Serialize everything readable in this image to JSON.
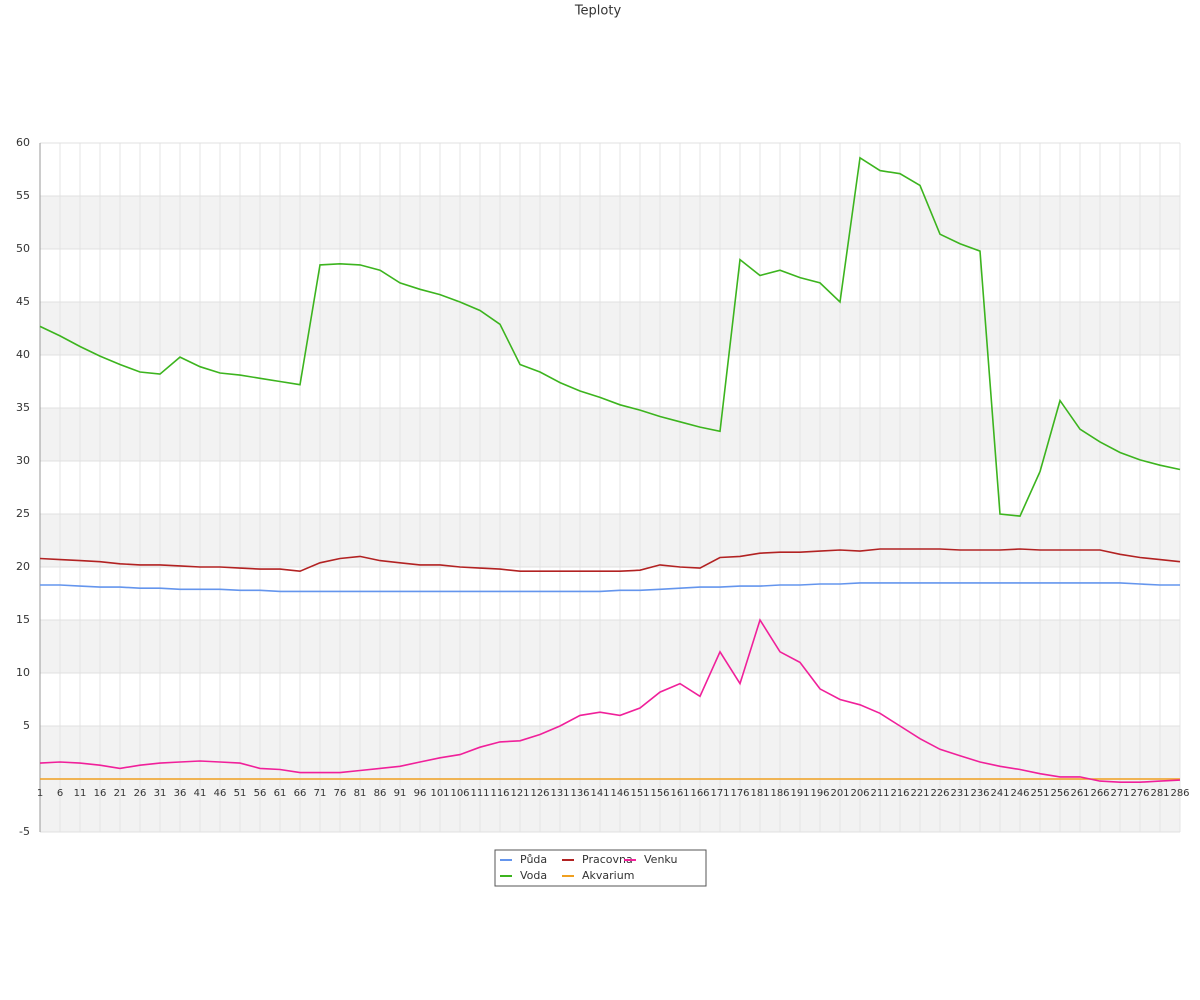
{
  "chart_data": {
    "type": "line",
    "title": "Teploty",
    "categories": [
      "1",
      "6",
      "11",
      "16",
      "21",
      "26",
      "31",
      "36",
      "41",
      "46",
      "51",
      "56",
      "61",
      "66",
      "71",
      "76",
      "81",
      "86",
      "91",
      "96",
      "101",
      "106",
      "111",
      "116",
      "121",
      "126",
      "131",
      "136",
      "141",
      "146",
      "151",
      "156",
      "161",
      "166",
      "171",
      "176",
      "181",
      "186",
      "191",
      "196",
      "201",
      "206",
      "211",
      "216",
      "221",
      "226",
      "231",
      "236",
      "241",
      "246",
      "251",
      "256",
      "261",
      "266",
      "271",
      "276",
      "281",
      "286"
    ],
    "series": [
      {
        "name": "Půda",
        "color": "#6495ed",
        "values": [
          18.3,
          18.3,
          18.2,
          18.1,
          18.1,
          18.0,
          18.0,
          17.9,
          17.9,
          17.9,
          17.8,
          17.8,
          17.7,
          17.7,
          17.7,
          17.7,
          17.7,
          17.7,
          17.7,
          17.7,
          17.7,
          17.7,
          17.7,
          17.7,
          17.7,
          17.7,
          17.7,
          17.7,
          17.7,
          17.8,
          17.8,
          17.9,
          18.0,
          18.1,
          18.1,
          18.2,
          18.2,
          18.3,
          18.3,
          18.4,
          18.4,
          18.5,
          18.5,
          18.5,
          18.5,
          18.5,
          18.5,
          18.5,
          18.5,
          18.5,
          18.5,
          18.5,
          18.5,
          18.5,
          18.5,
          18.4,
          18.3,
          18.3
        ]
      },
      {
        "name": "Voda",
        "color": "#3cb41e",
        "values": [
          42.7,
          41.8,
          40.8,
          39.9,
          39.1,
          38.4,
          38.2,
          39.8,
          38.9,
          38.3,
          38.1,
          37.8,
          37.5,
          37.2,
          48.5,
          48.6,
          48.5,
          48.0,
          46.8,
          46.2,
          45.7,
          45.0,
          44.2,
          42.9,
          39.1,
          38.4,
          37.4,
          36.6,
          36.0,
          35.3,
          34.8,
          34.2,
          33.7,
          33.2,
          32.8,
          49.0,
          47.5,
          48.0,
          47.3,
          46.8,
          45.0,
          58.6,
          57.4,
          57.1,
          56.0,
          51.4,
          50.5,
          49.8,
          25.0,
          24.8,
          29.0,
          35.7,
          33.0,
          31.8,
          30.8,
          30.1,
          29.6,
          29.2
        ]
      },
      {
        "name": "Pracovna",
        "color": "#b22222",
        "values": [
          20.8,
          20.7,
          20.6,
          20.5,
          20.3,
          20.2,
          20.2,
          20.1,
          20.0,
          20.0,
          19.9,
          19.8,
          19.8,
          19.6,
          20.4,
          20.8,
          21.0,
          20.6,
          20.4,
          20.2,
          20.2,
          20.0,
          19.9,
          19.8,
          19.6,
          19.6,
          19.6,
          19.6,
          19.6,
          19.6,
          19.7,
          20.2,
          20.0,
          19.9,
          20.9,
          21.0,
          21.3,
          21.4,
          21.4,
          21.5,
          21.6,
          21.5,
          21.7,
          21.7,
          21.7,
          21.7,
          21.6,
          21.6,
          21.6,
          21.7,
          21.6,
          21.6,
          21.6,
          21.6,
          21.2,
          20.9,
          20.7,
          20.5
        ]
      },
      {
        "name": "Akvarium",
        "color": "#f0a020",
        "values": [
          0,
          0,
          0,
          0,
          0,
          0,
          0,
          0,
          0,
          0,
          0,
          0,
          0,
          0,
          0,
          0,
          0,
          0,
          0,
          0,
          0,
          0,
          0,
          0,
          0,
          0,
          0,
          0,
          0,
          0,
          0,
          0,
          0,
          0,
          0,
          0,
          0,
          0,
          0,
          0,
          0,
          0,
          0,
          0,
          0,
          0,
          0,
          0,
          0,
          0,
          0,
          0,
          0,
          0,
          0,
          0,
          0,
          0
        ]
      },
      {
        "name": "Venku",
        "color": "#f0209a",
        "values": [
          1.5,
          1.6,
          1.5,
          1.3,
          1.0,
          1.3,
          1.5,
          1.6,
          1.7,
          1.6,
          1.5,
          1.0,
          0.9,
          0.6,
          0.6,
          0.6,
          0.8,
          1.0,
          1.2,
          1.6,
          2.0,
          2.3,
          3.0,
          3.5,
          3.6,
          4.2,
          5.0,
          6.0,
          6.3,
          6.0,
          6.7,
          8.2,
          9.0,
          7.8,
          12.0,
          9.0,
          15.0,
          12.0,
          11.0,
          8.5,
          7.5,
          7.0,
          6.2,
          5.0,
          3.8,
          2.8,
          2.2,
          1.6,
          1.2,
          0.9,
          0.5,
          0.2,
          0.2,
          -0.2,
          -0.3,
          -0.3,
          -0.2,
          -0.1
        ]
      }
    ],
    "ylim": [
      -5,
      60
    ],
    "yticks": [
      -5,
      5,
      10,
      15,
      20,
      25,
      30,
      35,
      40,
      45,
      50,
      55,
      60
    ],
    "grid": true,
    "legend": "bottom"
  }
}
